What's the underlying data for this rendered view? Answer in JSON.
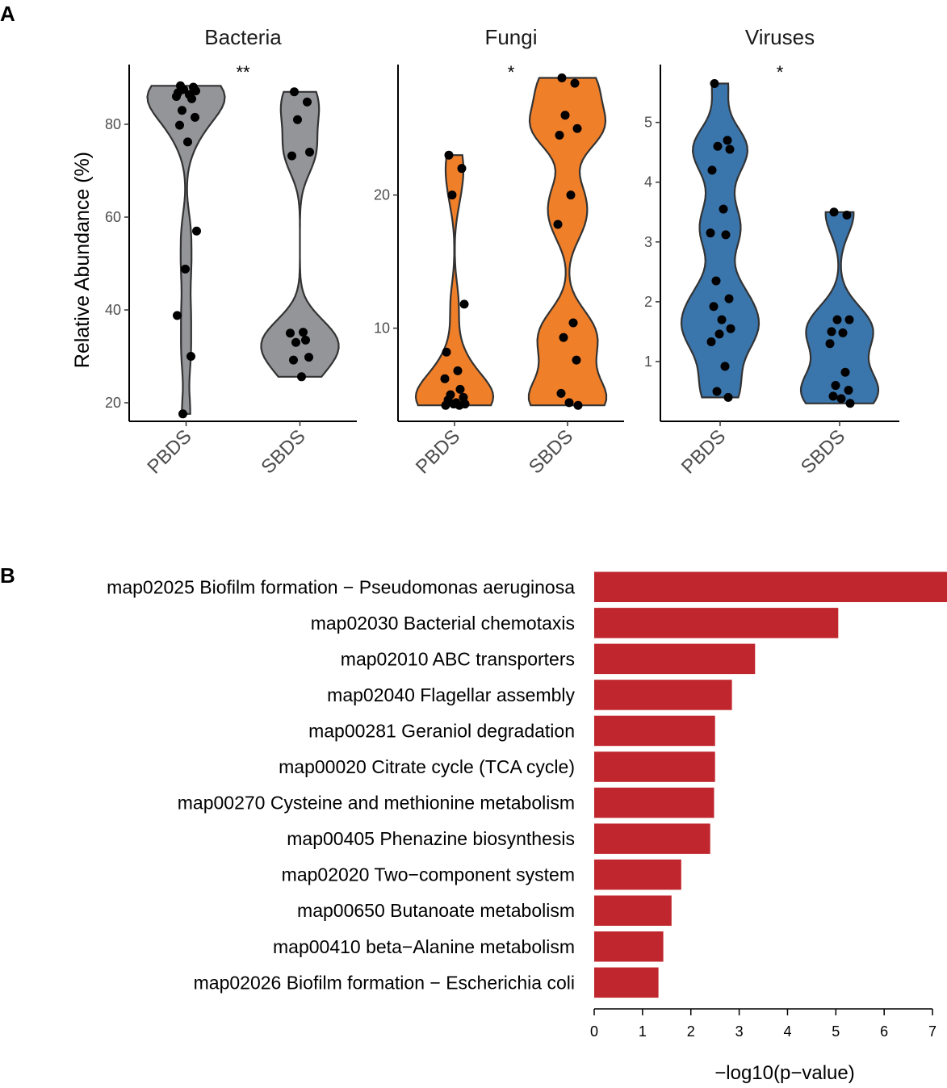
{
  "panels": {
    "a": "A",
    "b": "B"
  },
  "chart_data": [
    {
      "type": "violin",
      "ylabel": "Relative Abundance (%)",
      "categories": [
        "PBDS",
        "SBDS"
      ],
      "facets": [
        {
          "title": "Bacteria",
          "significance": "**",
          "color": "#939598",
          "ylim": [
            16,
            92
          ],
          "yticks": [
            20,
            40,
            60,
            80
          ],
          "groups": [
            {
              "category": "PBDS",
              "values": [
                88.3,
                88.0,
                87.5,
                87.2,
                86.8,
                86.4,
                86.0,
                85.5,
                83.0,
                81.5,
                79.8,
                76.2,
                57.0,
                48.8,
                38.8,
                30.0,
                17.6
              ]
            },
            {
              "category": "SBDS",
              "values": [
                87.0,
                84.8,
                81.0,
                74.0,
                73.2,
                35.2,
                35.0,
                33.5,
                33.0,
                29.8,
                29.2,
                25.6
              ]
            }
          ]
        },
        {
          "title": "Fungi",
          "significance": "*",
          "color": "#f07f2a",
          "ylim": [
            3,
            29.5
          ],
          "yticks": [
            10,
            20
          ],
          "groups": [
            {
              "category": "PBDS",
              "values": [
                23.0,
                22.0,
                20.0,
                11.8,
                8.2,
                6.8,
                6.2,
                5.4,
                5.0,
                4.8,
                4.6,
                4.4,
                4.3,
                4.3,
                4.2,
                4.2
              ]
            },
            {
              "category": "SBDS",
              "values": [
                28.8,
                28.4,
                26.0,
                25.0,
                24.5,
                20.0,
                17.8,
                10.4,
                9.3,
                7.6,
                5.1,
                4.4,
                4.2
              ]
            }
          ]
        },
        {
          "title": "Viruses",
          "significance": "*",
          "color": "#3a75ac",
          "ylim": [
            0.0,
            5.9
          ],
          "yticks": [
            1,
            2,
            3,
            4,
            5
          ],
          "groups": [
            {
              "category": "PBDS",
              "values": [
                5.65,
                4.7,
                4.6,
                4.55,
                4.2,
                3.55,
                3.15,
                3.12,
                2.35,
                2.05,
                1.92,
                1.7,
                1.55,
                1.46,
                1.33,
                0.92,
                0.5,
                0.4
              ]
            },
            {
              "category": "SBDS",
              "values": [
                3.5,
                3.45,
                1.7,
                1.7,
                1.5,
                1.48,
                1.3,
                0.82,
                0.6,
                0.52,
                0.42,
                0.38,
                0.3
              ]
            }
          ]
        }
      ]
    },
    {
      "type": "bar",
      "orientation": "horizontal",
      "xlabel": "−log10(p−value)",
      "xlim": [
        0,
        7.3
      ],
      "xticks": [
        0,
        1,
        2,
        3,
        4,
        5,
        6,
        7
      ],
      "color": "#c0262d",
      "categories": [
        "map02025 Biofilm formation − Pseudomonas aeruginosa",
        "map02030 Bacterial chemotaxis",
        "map02010 ABC transporters",
        "map02040 Flagellar assembly",
        "map00281 Geraniol degradation",
        "map00020 Citrate cycle (TCA cycle)",
        "map00270 Cysteine and methionine metabolism",
        "map00405 Phenazine biosynthesis",
        "map02020 Two−component system",
        "map00650 Butanoate metabolism",
        "map00410 beta−Alanine metabolism",
        "map02026 Biofilm formation − Escherichia coli"
      ],
      "values": [
        7.3,
        5.05,
        3.33,
        2.85,
        2.5,
        2.5,
        2.48,
        2.4,
        1.8,
        1.6,
        1.43,
        1.33
      ]
    }
  ]
}
